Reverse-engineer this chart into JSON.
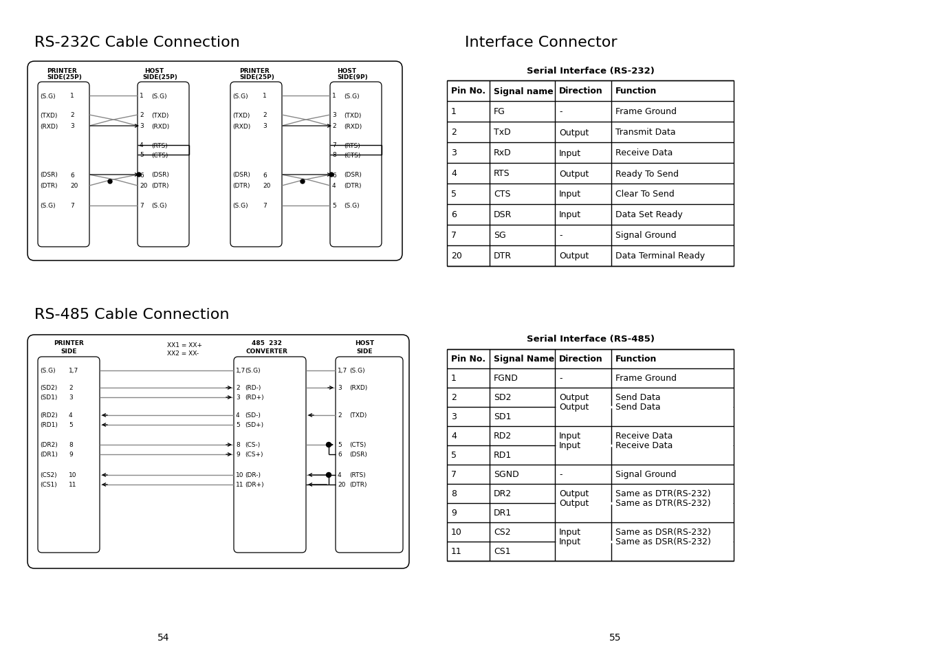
{
  "bg_color": "#ffffff",
  "title_rs232": "RS-232C Cable Connection",
  "title_rs485": "RS-485 Cable Connection",
  "title_interface": "Interface Connector",
  "rs232_table_title": "Serial Interface (RS-232)",
  "rs232_headers": [
    "Pin No.",
    "Signal name",
    "Direction",
    "Function"
  ],
  "rs232_rows": [
    [
      "1",
      "FG",
      "-",
      "Frame Ground"
    ],
    [
      "2",
      "TxD",
      "Output",
      "Transmit Data"
    ],
    [
      "3",
      "RxD",
      "Input",
      "Receive Data"
    ],
    [
      "4",
      "RTS",
      "Output",
      "Ready To Send"
    ],
    [
      "5",
      "CTS",
      "Input",
      "Clear To Send"
    ],
    [
      "6",
      "DSR",
      "Input",
      "Data Set Ready"
    ],
    [
      "7",
      "SG",
      "-",
      "Signal Ground"
    ],
    [
      "20",
      "DTR",
      "Output",
      "Data Terminal Ready"
    ]
  ],
  "rs485_table_title": "Serial Interface (RS-485)",
  "rs485_headers": [
    "Pin No.",
    "Signal Name",
    "Direction",
    "Function"
  ],
  "rs485_rows_display": [
    [
      "1",
      "FGND",
      "-",
      "Frame Ground",
      false,
      false
    ],
    [
      "2",
      "SD2",
      "Output",
      "Send Data",
      false,
      false
    ],
    [
      "3",
      "SD1",
      "",
      "",
      true,
      true
    ],
    [
      "4",
      "RD2",
      "Input",
      "Receive Data",
      false,
      false
    ],
    [
      "5",
      "RD1",
      "",
      "",
      true,
      true
    ],
    [
      "7",
      "SGND",
      "-",
      "Signal Ground",
      false,
      false
    ],
    [
      "8",
      "DR2",
      "Output",
      "Same as DTR(RS-232)",
      false,
      false
    ],
    [
      "9",
      "DR1",
      "",
      "",
      true,
      true
    ],
    [
      "10",
      "CS2",
      "Input",
      "Same as DSR(RS-232)",
      false,
      false
    ],
    [
      "11",
      "CS1",
      "",
      "",
      true,
      true
    ]
  ],
  "page_left": "54",
  "page_right": "55"
}
